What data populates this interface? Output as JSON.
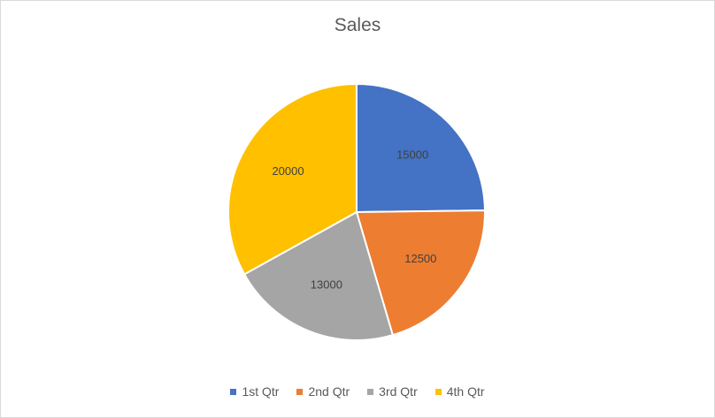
{
  "chart_data": {
    "type": "pie",
    "title": "Sales",
    "categories": [
      "1st Qtr",
      "2nd Qtr",
      "3rd Qtr",
      "4th Qtr"
    ],
    "values": [
      15000,
      12500,
      13000,
      20000
    ],
    "data_labels": [
      "15000",
      "12500",
      "13000",
      "20000"
    ],
    "colors": [
      "#4472c4",
      "#ed7d31",
      "#a5a5a5",
      "#ffc000"
    ],
    "legend_position": "bottom"
  }
}
